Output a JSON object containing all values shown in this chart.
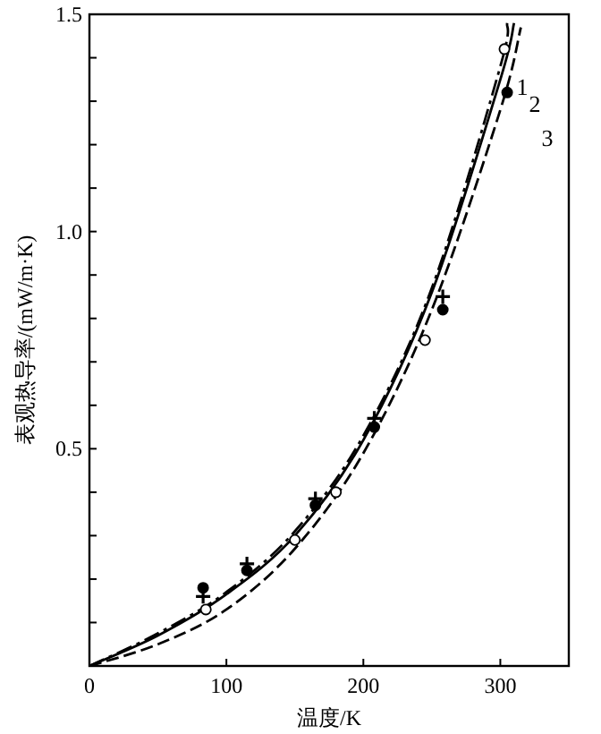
{
  "chart_data": {
    "type": "line",
    "xlabel": "温度/K",
    "ylabel": "表观热导率/(mW/m·K)",
    "xlim": [
      0,
      350
    ],
    "ylim": [
      0,
      1.5
    ],
    "xticks": [
      0,
      100,
      200,
      300
    ],
    "yticks": [
      {
        "value": 0.1,
        "label": null
      },
      {
        "value": 0.2,
        "label": null
      },
      {
        "value": 0.3,
        "label": null
      },
      {
        "value": 0.4,
        "label": null
      },
      {
        "value": 0.5,
        "label": "0.5"
      },
      {
        "value": 0.6,
        "label": null
      },
      {
        "value": 0.7,
        "label": null
      },
      {
        "value": 0.8,
        "label": null
      },
      {
        "value": 0.9,
        "label": null
      },
      {
        "value": 1.0,
        "label": "1.0"
      },
      {
        "value": 1.1,
        "label": null
      },
      {
        "value": 1.2,
        "label": null
      },
      {
        "value": 1.3,
        "label": null
      },
      {
        "value": 1.4,
        "label": null
      },
      {
        "value": 1.5,
        "label": "1.5"
      }
    ],
    "grid": false,
    "series": [
      {
        "name": "1",
        "type": "line",
        "line_style": "dashdot",
        "color": "#000000",
        "x": [
          0,
          50,
          100,
          150,
          200,
          250,
          300,
          305
        ],
        "values": [
          0,
          0.075,
          0.17,
          0.31,
          0.53,
          0.87,
          1.38,
          1.48
        ]
      },
      {
        "name": "2",
        "type": "line",
        "line_style": "solid",
        "color": "#000000",
        "x": [
          0,
          50,
          100,
          150,
          200,
          250,
          300,
          310
        ],
        "values": [
          0,
          0.07,
          0.165,
          0.3,
          0.52,
          0.86,
          1.35,
          1.48
        ]
      },
      {
        "name": "3",
        "type": "line",
        "line_style": "dashed",
        "color": "#000000",
        "x": [
          0,
          50,
          100,
          150,
          200,
          250,
          300,
          315
        ],
        "values": [
          0,
          0.05,
          0.13,
          0.27,
          0.49,
          0.82,
          1.28,
          1.47
        ]
      },
      {
        "type": "scatter",
        "marker": "circle",
        "color": "#ffffff",
        "x": [
          85,
          150,
          180,
          245,
          303
        ],
        "values": [
          0.13,
          0.29,
          0.4,
          0.75,
          1.42
        ]
      },
      {
        "type": "scatter",
        "marker": "circle",
        "color": "#000000",
        "x": [
          83,
          115,
          165,
          208,
          258,
          305
        ],
        "values": [
          0.18,
          0.22,
          0.37,
          0.55,
          0.82,
          1.32
        ]
      },
      {
        "type": "scatter",
        "marker": "cross",
        "color": "#000000",
        "x": [
          83,
          115,
          165,
          208,
          258
        ],
        "values": [
          0.16,
          0.235,
          0.385,
          0.57,
          0.85
        ]
      }
    ]
  }
}
